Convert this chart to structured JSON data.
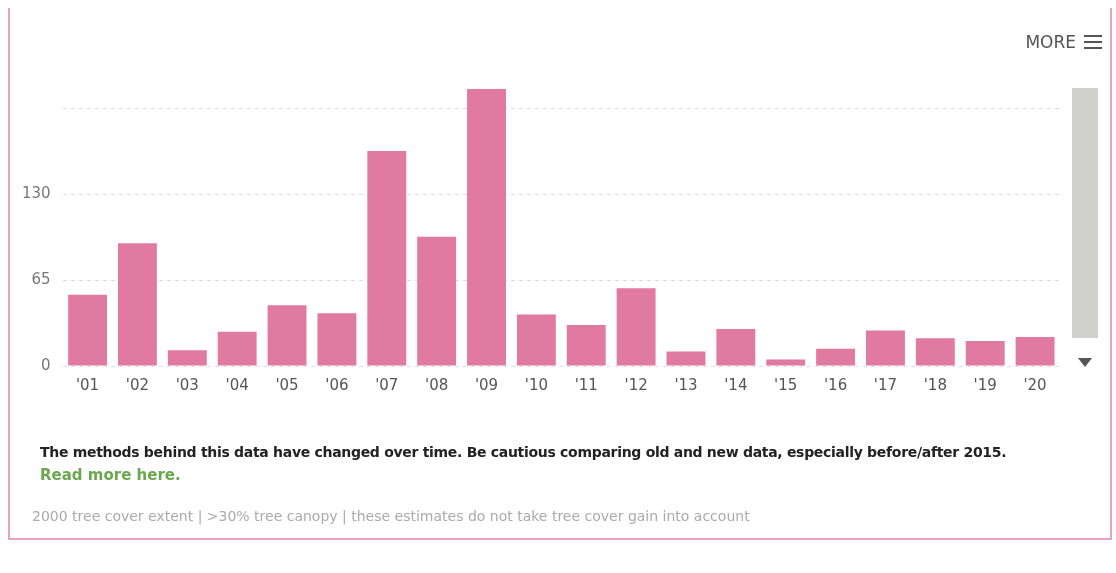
{
  "chart_data": {
    "type": "bar",
    "categories": [
      "'01",
      "'02",
      "'03",
      "'04",
      "'05",
      "'06",
      "'07",
      "'08",
      "'09",
      "'10",
      "'11",
      "'12",
      "'13",
      "'14",
      "'15",
      "'16",
      "'17",
      "'18",
      "'19",
      "'20"
    ],
    "values": [
      54,
      93,
      12,
      26,
      46,
      40,
      163,
      98,
      210,
      39,
      31,
      59,
      11,
      28,
      5,
      13,
      27,
      21,
      19,
      22
    ],
    "color": "#e17aa0",
    "ylim": [
      0,
      210
    ],
    "yticks": [
      0,
      65,
      130,
      {
        "value": 195,
        "label": null
      }
    ],
    "grid": "y",
    "annotations": [
      "The methods behind this data have changed over time. Be cautious comparing old and new data, especially before/after 2015.",
      "Read more here.",
      "2000 tree cover extent | >30% tree canopy | these estimates do not take tree cover gain into account",
      "MORE"
    ]
  }
}
